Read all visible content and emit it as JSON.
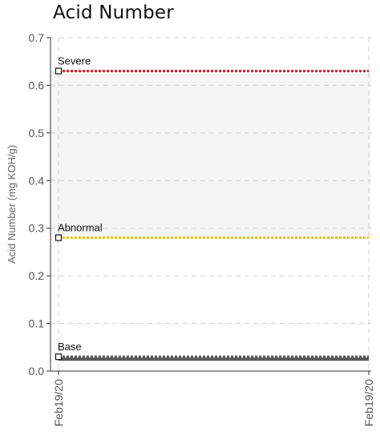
{
  "chart_data": {
    "type": "line",
    "title": "Acid Number",
    "xlabel": "",
    "ylabel": "Acid Number (mg KOH/g)",
    "ylim": [
      0,
      0.7
    ],
    "y_ticks": [
      "0.0",
      "0.1",
      "0.2",
      "0.3",
      "0.4",
      "0.5",
      "0.6",
      "0.7"
    ],
    "x": [
      "Feb19/20",
      "Feb19/20"
    ],
    "grid": true,
    "bands": [
      {
        "from": 0.28,
        "to": 0.63,
        "color": "#f5f5f5"
      }
    ],
    "series": [
      {
        "name": "Severe",
        "values": [
          0.63,
          0.63
        ],
        "color": "#e8182b",
        "style": "dotted"
      },
      {
        "name": "Abnormal",
        "values": [
          0.28,
          0.28
        ],
        "color": "#f2c200",
        "style": "dotted"
      },
      {
        "name": "Base",
        "values": [
          0.03,
          0.03
        ],
        "color": "#555555",
        "style": "dotted",
        "underlay_color": "#5a5a5a"
      }
    ]
  }
}
